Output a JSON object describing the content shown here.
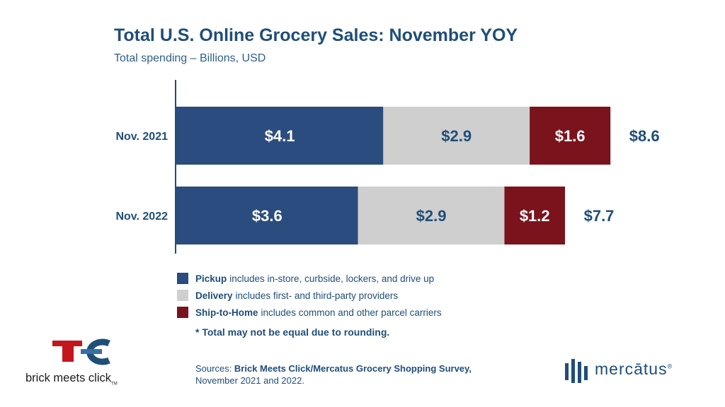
{
  "chart_data": {
    "type": "bar",
    "orientation": "horizontal",
    "stacked": true,
    "title": "Total U.S. Online Grocery Sales: November YOY",
    "subtitle": "Total spending – Billions, USD",
    "categories": [
      "Nov. 2021",
      "Nov. 2022"
    ],
    "series": [
      {
        "name": "Pickup",
        "values": [
          4.1,
          3.6
        ],
        "labels": [
          "$4.1",
          "$3.6"
        ],
        "color": "#2b4c7e",
        "label_color": "#ffffff"
      },
      {
        "name": "Delivery",
        "values": [
          2.9,
          2.9
        ],
        "labels": [
          "$2.9",
          "$2.9"
        ],
        "color": "#cfcfcf",
        "label_color": "#1f4e79"
      },
      {
        "name": "Ship-to-Home",
        "values": [
          1.6,
          1.2
        ],
        "labels": [
          "$1.6",
          "$1.2"
        ],
        "color": "#7b131c",
        "label_color": "#ffffff"
      }
    ],
    "totals": [
      8.6,
      7.7
    ],
    "total_labels": [
      "$8.6",
      "$7.7"
    ],
    "xlim": [
      0,
      8.6
    ],
    "grid": false,
    "legend_position": "bottom"
  },
  "legend": [
    {
      "name": "Pickup",
      "desc": "includes in-store, curbside, lockers, and drive up",
      "color": "#2b4c7e"
    },
    {
      "name": "Delivery",
      "desc": "includes first- and third-party providers",
      "color": "#cfcfcf"
    },
    {
      "name": "Ship-to-Home",
      "desc": "includes common and other parcel carriers",
      "color": "#7b131c"
    }
  ],
  "note": "* Total may not be equal due to rounding.",
  "sources": {
    "prefix": "Sources: ",
    "bold": "Brick Meets Click/Mercatus Grocery Shopping Survey,",
    "line2": "November 2021 and 2022."
  },
  "logos": {
    "left_text": "brick meets click",
    "left_tm": "TM",
    "right_text": "mercātus",
    "right_reg": "®"
  }
}
